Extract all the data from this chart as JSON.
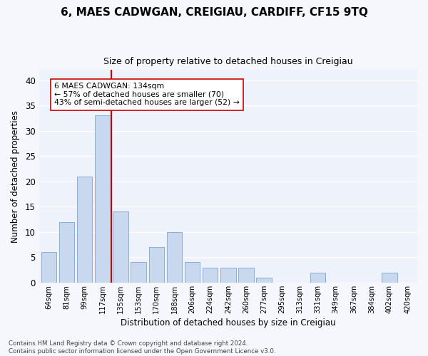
{
  "title": "6, MAES CADWGAN, CREIGIAU, CARDIFF, CF15 9TQ",
  "subtitle": "Size of property relative to detached houses in Creigiau",
  "xlabel": "Distribution of detached houses by size in Creigiau",
  "ylabel": "Number of detached properties",
  "bar_color": "#c8d8ee",
  "bar_edge_color": "#8aadd4",
  "background_color": "#eef2fa",
  "grid_color": "#ffffff",
  "annotation_text": "6 MAES CADWGAN: 134sqm\n← 57% of detached houses are smaller (70)\n43% of semi-detached houses are larger (52) →",
  "vline_color": "#cc0000",
  "annotation_box_edge": "#cc0000",
  "footer_text": "Contains HM Land Registry data © Crown copyright and database right 2024.\nContains public sector information licensed under the Open Government Licence v3.0.",
  "categories": [
    "64sqm",
    "81sqm",
    "99sqm",
    "117sqm",
    "135sqm",
    "153sqm",
    "170sqm",
    "188sqm",
    "206sqm",
    "224sqm",
    "242sqm",
    "260sqm",
    "277sqm",
    "295sqm",
    "313sqm",
    "331sqm",
    "349sqm",
    "367sqm",
    "384sqm",
    "402sqm",
    "420sqm"
  ],
  "values": [
    6,
    12,
    21,
    33,
    14,
    4,
    7,
    10,
    4,
    3,
    3,
    3,
    1,
    0,
    0,
    2,
    0,
    0,
    0,
    2,
    0
  ],
  "ylim": [
    0,
    42
  ],
  "yticks": [
    0,
    5,
    10,
    15,
    20,
    25,
    30,
    35,
    40
  ],
  "vline_bar_index": 4,
  "fig_width": 6.0,
  "fig_height": 5.0,
  "dpi": 100
}
